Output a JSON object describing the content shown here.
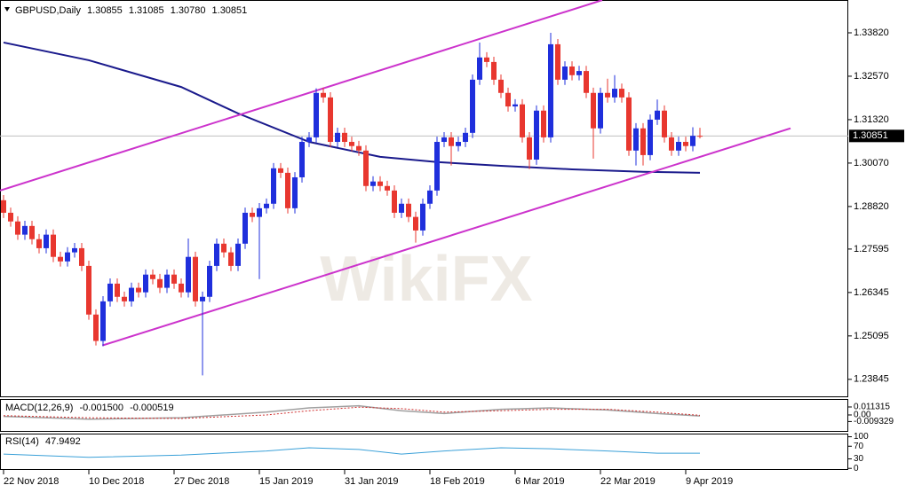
{
  "chart_data": {
    "type": "candlestick",
    "header": {
      "symbol": "GBPUSD,Daily",
      "ohlc": [
        1.30855,
        1.31085,
        {
          "value": 1.3078,
          "label": "1.30780"
        },
        1.30851
      ]
    },
    "categories": [
      "22 Nov 2018",
      null,
      null,
      null,
      null,
      null,
      null,
      null,
      null,
      null,
      null,
      null,
      "10 Dec 2018",
      null,
      null,
      null,
      null,
      null,
      null,
      null,
      null,
      null,
      null,
      null,
      "27 Dec 2018",
      null,
      null,
      null,
      null,
      null,
      null,
      null,
      null,
      null,
      null,
      null,
      "15 Jan 2019",
      null,
      null,
      null,
      null,
      null,
      null,
      null,
      null,
      null,
      null,
      null,
      "31 Jan 2019",
      null,
      null,
      null,
      null,
      null,
      null,
      null,
      null,
      null,
      null,
      null,
      "18 Feb 2019",
      null,
      null,
      null,
      null,
      null,
      null,
      null,
      null,
      null,
      null,
      null,
      "6 Mar 2019",
      null,
      null,
      null,
      null,
      null,
      null,
      null,
      null,
      null,
      null,
      null,
      "22 Mar 2019",
      null,
      null,
      null,
      null,
      null,
      null,
      null,
      null,
      null,
      null,
      null,
      "9 Apr 2019",
      null,
      null
    ],
    "candles": [
      [
        1.29,
        1.2915,
        1.2849,
        1.2864
      ],
      [
        1.2864,
        1.2879,
        1.2824,
        1.2839
      ],
      [
        1.2839,
        1.2854,
        1.2786,
        1.2801
      ],
      [
        1.2801,
        1.2841,
        1.2786,
        1.2826
      ],
      [
        1.2826,
        1.2841,
        1.2773,
        1.2788
      ],
      [
        1.2788,
        1.2803,
        1.2747,
        1.2762
      ],
      [
        1.2762,
        1.2816,
        1.2747,
        1.2801
      ],
      [
        1.2801,
        1.2816,
        1.2722,
        1.2737
      ],
      [
        1.2737,
        1.2752,
        1.2709,
        1.2724
      ],
      [
        1.2724,
        1.2765,
        1.2709,
        1.275
      ],
      [
        1.275,
        1.2777,
        1.2735,
        1.2762
      ],
      [
        1.2762,
        1.2777,
        1.2696,
        1.2711
      ],
      [
        1.2711,
        1.2726,
        1.2556,
        1.2571
      ],
      [
        1.2571,
        1.2586,
        1.2482,
        1.2495
      ],
      [
        1.2495,
        1.2624,
        1.248,
        1.2609
      ],
      [
        1.2609,
        1.2675,
        1.2594,
        1.266
      ],
      [
        1.266,
        1.2675,
        1.2607,
        1.2622
      ],
      [
        1.2622,
        1.2637,
        1.2594,
        1.2609
      ],
      [
        1.2609,
        1.2663,
        1.2594,
        1.2648
      ],
      [
        1.2648,
        1.2663,
        1.262,
        1.2635
      ],
      [
        1.2635,
        1.2701,
        1.262,
        1.2686
      ],
      [
        1.2686,
        1.2701,
        1.2658,
        1.2673
      ],
      [
        1.2673,
        1.2688,
        1.2633,
        1.2648
      ],
      [
        1.2648,
        1.2701,
        1.2633,
        1.2686
      ],
      [
        1.2686,
        1.2701,
        1.2645,
        1.266
      ],
      [
        1.266,
        1.2675,
        1.262,
        1.2635
      ],
      [
        1.2635,
        1.279,
        1.262,
        1.2737
      ],
      [
        1.2737,
        1.2752,
        1.2594,
        1.2609
      ],
      [
        1.2609,
        1.2637,
        1.2396,
        1.2622
      ],
      [
        1.2622,
        1.2726,
        1.2607,
        1.2711
      ],
      [
        1.2711,
        1.279,
        1.2696,
        1.2775
      ],
      [
        1.2775,
        1.279,
        1.2735,
        1.275
      ],
      [
        1.275,
        1.2765,
        1.2696,
        1.2711
      ],
      [
        1.2711,
        1.279,
        1.2696,
        1.2775
      ],
      [
        1.2775,
        1.2879,
        1.276,
        1.2864
      ],
      [
        1.2864,
        1.2879,
        1.2837,
        1.2852
      ],
      [
        1.2852,
        1.2892,
        1.2673,
        1.2877
      ],
      [
        1.2877,
        1.2905,
        1.2862,
        1.289
      ],
      [
        1.289,
        1.3007,
        1.2875,
        1.2992
      ],
      [
        1.2992,
        1.3007,
        1.2964,
        1.2979
      ],
      [
        1.2979,
        1.2994,
        1.2862,
        1.2877
      ],
      [
        1.2877,
        1.2981,
        1.2862,
        1.2966
      ],
      [
        1.2966,
        1.3083,
        1.2951,
        1.3068
      ],
      [
        1.3068,
        1.3096,
        1.3053,
        1.3081
      ],
      [
        1.3081,
        1.3222,
        1.3066,
        1.3209
      ],
      [
        1.3209,
        1.3224,
        1.3181,
        1.3196
      ],
      [
        1.3196,
        1.3211,
        1.3053,
        1.3068
      ],
      [
        1.3068,
        1.3109,
        1.3053,
        1.3094
      ],
      [
        1.3094,
        1.3109,
        1.3053,
        1.3068
      ],
      [
        1.3068,
        1.3083,
        1.3041,
        1.3056
      ],
      [
        1.3056,
        1.3071,
        1.3028,
        1.3043
      ],
      [
        1.3043,
        1.3058,
        1.2926,
        1.2941
      ],
      [
        1.2941,
        1.2969,
        1.2926,
        1.2954
      ],
      [
        1.2954,
        1.2969,
        1.2926,
        1.2941
      ],
      [
        1.2941,
        1.2956,
        1.2913,
        1.2928
      ],
      [
        1.2928,
        1.2943,
        1.2849,
        1.2864
      ],
      [
        1.2864,
        1.2905,
        1.2849,
        1.289
      ],
      [
        1.289,
        1.2905,
        1.2837,
        1.2852
      ],
      [
        1.2852,
        1.2867,
        1.2778,
        1.2813
      ],
      [
        1.2813,
        1.2905,
        1.2798,
        1.289
      ],
      [
        1.289,
        1.2943,
        1.2875,
        1.2928
      ],
      [
        1.2928,
        1.3083,
        1.2913,
        1.3068
      ],
      [
        1.3068,
        1.3096,
        1.3053,
        1.3081
      ],
      [
        1.3081,
        1.3096,
        1.3,
        1.3056
      ],
      [
        1.3056,
        1.3083,
        1.3041,
        1.3068
      ],
      [
        1.3068,
        1.3109,
        1.3053,
        1.3094
      ],
      [
        1.3094,
        1.3262,
        1.3079,
        1.3247
      ],
      [
        1.3247,
        1.3354,
        1.3232,
        1.3311
      ],
      [
        1.3311,
        1.3326,
        1.3283,
        1.3298
      ],
      [
        1.3298,
        1.3313,
        1.3232,
        1.3247
      ],
      [
        1.3247,
        1.3262,
        1.3194,
        1.3209
      ],
      [
        1.3209,
        1.3224,
        1.3155,
        1.317
      ],
      [
        1.317,
        1.3191,
        1.3155,
        1.3176
      ],
      [
        1.3176,
        1.3191,
        1.3066,
        1.3081
      ],
      [
        1.3081,
        1.3096,
        1.299,
        1.3017
      ],
      [
        1.3017,
        1.3173,
        1.3002,
        1.3158
      ],
      [
        1.3158,
        1.3173,
        1.3066,
        1.3081
      ],
      [
        1.3081,
        1.3382,
        1.3066,
        1.3349
      ],
      [
        1.3349,
        1.3364,
        1.3232,
        1.3247
      ],
      [
        1.3247,
        1.33,
        1.3232,
        1.3285
      ],
      [
        1.3285,
        1.33,
        1.3245,
        1.326
      ],
      [
        1.326,
        1.3287,
        1.3245,
        1.3272
      ],
      [
        1.3272,
        1.3287,
        1.3194,
        1.3209
      ],
      [
        1.3209,
        1.3224,
        1.302,
        1.3107
      ],
      [
        1.3107,
        1.3224,
        1.3092,
        1.3209
      ],
      [
        1.3209,
        1.325,
        1.3181,
        1.3196
      ],
      [
        1.3196,
        1.326,
        1.3181,
        1.3221
      ],
      [
        1.3221,
        1.3236,
        1.3181,
        1.3196
      ],
      [
        1.3196,
        1.3211,
        1.3028,
        1.3043
      ],
      [
        1.3043,
        1.3122,
        1.3,
        1.3107
      ],
      [
        1.3107,
        1.3122,
        1.3,
        1.303
      ],
      [
        1.303,
        1.3147,
        1.3015,
        1.3132
      ],
      [
        1.3132,
        1.319,
        1.3117,
        1.3158
      ],
      [
        1.3158,
        1.3173,
        1.3066,
        1.3081
      ],
      [
        1.3081,
        1.3096,
        1.3028,
        1.3043
      ],
      [
        1.3043,
        1.3083,
        1.3028,
        1.3068
      ],
      [
        1.3068,
        1.3083,
        1.3041,
        1.3056
      ],
      [
        1.3056,
        1.311,
        1.3041,
        1.30855
      ],
      [
        1.30855,
        1.31085,
        1.3078,
        1.30851
      ]
    ],
    "up_color": "#1f2fdc",
    "down_color": "#e8372f",
    "ylim": [
      1.2333,
      1.34764
    ],
    "yticks": [
      {
        "value": 1.3382,
        "label": "1.33820"
      },
      {
        "value": 1.3257,
        "label": "1.32570"
      },
      {
        "value": 1.3132,
        "label": "1.31320"
      },
      {
        "value": 1.3007,
        "label": "1.30070"
      },
      {
        "value": 1.2882,
        "label": "1.28820"
      },
      1.27595,
      1.26345,
      1.25095,
      1.23845
    ],
    "current_price": 1.30851,
    "moving_average": {
      "color": "#1a1a8c",
      "x": [
        0,
        12,
        25,
        33,
        43,
        53,
        61,
        70,
        80,
        90,
        98
      ],
      "values": [
        1.3354,
        1.3303,
        1.3226,
        1.315,
        1.3068,
        1.3025,
        1.301,
        1.2999,
        1.2989,
        1.2982,
        1.2979
      ]
    },
    "trendline_color": "#cc33cc",
    "trendlines": [
      {
        "x": [
          -0.5,
          84.25
        ],
        "values": [
          1.2928,
          1.3476
        ]
      },
      {
        "x": [
          13.9,
          110.75
        ],
        "values": [
          1.2482,
          1.3107
        ]
      }
    ],
    "macd": {
      "title": "MACD(12,26,9)",
      "readout": [
        {
          "value": -0.0015,
          "label": "-0.001500"
        },
        -0.000519
      ],
      "x": [
        0,
        12,
        25,
        37,
        43,
        50,
        56,
        62,
        70,
        77,
        85,
        92,
        98
      ],
      "macd": [
        -0.002,
        -0.006,
        -0.004,
        0.004,
        0.01,
        0.013,
        0.006,
        0.002,
        0.008,
        0.01,
        0.007,
        0.002,
        -0.0015
      ],
      "signal": [
        -0.001,
        -0.004,
        -0.005,
        0.0,
        0.006,
        0.011,
        0.009,
        0.004,
        0.006,
        0.008,
        0.008,
        0.004,
        -0.000519
      ],
      "ylim": [
        -0.0239,
        0.0226
      ],
      "yticks": [
        0.011315,
        {
          "value": 0,
          "label": "0.00"
        },
        -0.009329
      ]
    },
    "rsi": {
      "title": "RSI(14)",
      "readout": 47.9492,
      "x": [
        0,
        12,
        25,
        37,
        43,
        50,
        56,
        62,
        70,
        77,
        85,
        92,
        98
      ],
      "values": [
        45,
        35,
        42,
        55,
        65,
        60,
        45,
        55,
        65,
        62,
        55,
        48,
        47.9492
      ],
      "ylim": [
        -5,
        110
      ],
      "yticks": [
        100,
        70,
        30,
        0
      ]
    },
    "watermark": "WikiFX"
  }
}
